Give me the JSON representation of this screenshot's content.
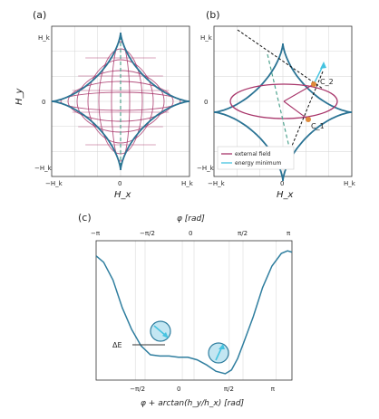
{
  "panels": [
    {
      "label": "(a)",
      "xlabel": "H_x",
      "ylabel": "H_y",
      "x_tick_labels": [
        "−H_k",
        "0",
        "H_k"
      ],
      "y_tick_labels": [
        "H_k",
        "0",
        "−H_k"
      ]
    },
    {
      "label": "(b)",
      "xlabel": "H_x",
      "x_tick_labels": [
        "−H_k",
        "0",
        "H_k"
      ],
      "y_tick_labels": [
        "H_k",
        "0",
        "−H_k"
      ],
      "point_labels": [
        "C_2",
        "C_1"
      ],
      "legend": [
        "external field",
        "energy minimum"
      ]
    },
    {
      "label": "(c)",
      "top_xlabel": "φ [rad]",
      "bottom_xlabel": "φ + arctan(h_y/h_x) [rad]",
      "top_ticks": [
        "−π",
        "−π/2",
        "0",
        "π/2",
        "π"
      ],
      "bottom_ticks": [
        "−π/2",
        "0",
        "π/2",
        "π"
      ],
      "annotation": "ΔE"
    }
  ],
  "colors": {
    "astroid": "#2a7394",
    "red_curves": "#a8356a",
    "dashed": "#4fa38f",
    "cyan": "#45c3e0",
    "orange": "#e08a3a",
    "curve_c": "#2f7e9f",
    "grid": "#d4d4d4",
    "frame": "#333333"
  },
  "chart_data": [
    {
      "type": "line",
      "panel": "(a)",
      "description_series": [
        {
          "name": "astroid",
          "kind": "parametric"
        },
        {
          "name": "ellipses",
          "kind": "family"
        }
      ],
      "xlim": [
        -1.1,
        1.1
      ],
      "ylim": [
        -1.1,
        1.1
      ],
      "grid": true
    },
    {
      "type": "line",
      "panel": "(b)",
      "series": [
        {
          "name": "external field",
          "kind": "ellipse",
          "cx": 0.25,
          "cy": 0.0,
          "rx": 0.72,
          "ry": 0.24
        },
        {
          "name": "energy minimum",
          "kind": "arrow"
        }
      ],
      "points": [
        {
          "name": "C_2",
          "x": 0.62,
          "y": 0.15
        },
        {
          "name": "C_1",
          "x": 0.55,
          "y": -0.18
        }
      ],
      "xlim": [
        -1.1,
        1.1
      ],
      "ylim": [
        -1.1,
        1.1
      ],
      "grid": true
    },
    {
      "type": "line",
      "panel": "(c)",
      "x_range_top": [
        -3.14159,
        3.14159
      ],
      "grid": true,
      "series": [
        {
          "x": [
            -3.14,
            -2.9,
            -2.6,
            -2.3,
            -2.0,
            -1.7,
            -1.4,
            -1.1,
            -0.8,
            -0.5,
            -0.2,
            0.1,
            0.4,
            0.7,
            1.0,
            1.2,
            1.4,
            1.6,
            1.9,
            2.2,
            2.5,
            2.8,
            3.0,
            3.14
          ],
          "y": [
            0.93,
            0.88,
            0.74,
            0.52,
            0.35,
            0.22,
            0.15,
            0.14,
            0.14,
            0.13,
            0.13,
            0.11,
            0.07,
            0.02,
            0.0,
            0.03,
            0.12,
            0.25,
            0.45,
            0.68,
            0.85,
            0.95,
            0.97,
            0.96
          ]
        }
      ],
      "ylim": [
        -0.05,
        1.05
      ]
    }
  ]
}
